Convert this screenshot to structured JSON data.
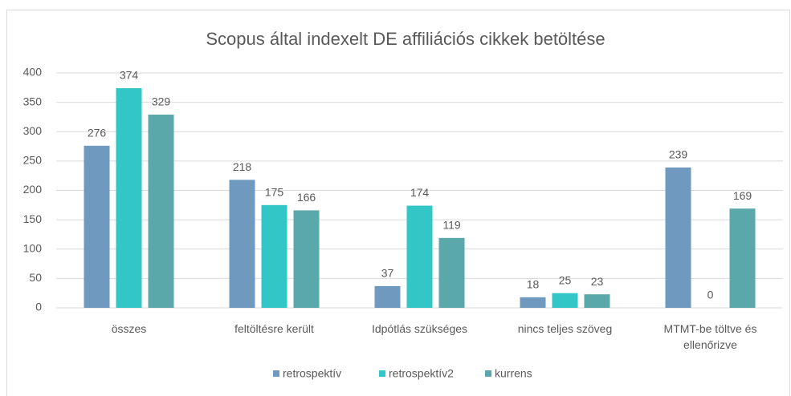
{
  "chart_data": {
    "type": "bar",
    "title": "Scopus által indexelt DE affiliációs cikkek betöltése",
    "categories": [
      "összes",
      "feltöltésre került",
      "Idpótlás szükséges",
      "nincs teljes szöveg",
      "MTMT-be töltve és ellenőrizve"
    ],
    "series": [
      {
        "name": "retrospektív",
        "color": "#7099c0",
        "values": [
          276,
          218,
          37,
          18,
          239
        ]
      },
      {
        "name": "retrospektív2",
        "color": "#33c6c6",
        "values": [
          374,
          175,
          174,
          25,
          0
        ]
      },
      {
        "name": "kurrens",
        "color": "#5ba8aa",
        "values": [
          329,
          166,
          119,
          23,
          169
        ]
      }
    ],
    "ylim": [
      0,
      400
    ],
    "yticks": [
      0,
      50,
      100,
      150,
      200,
      250,
      300,
      350,
      400
    ],
    "grid": true,
    "legend": "bottom"
  }
}
